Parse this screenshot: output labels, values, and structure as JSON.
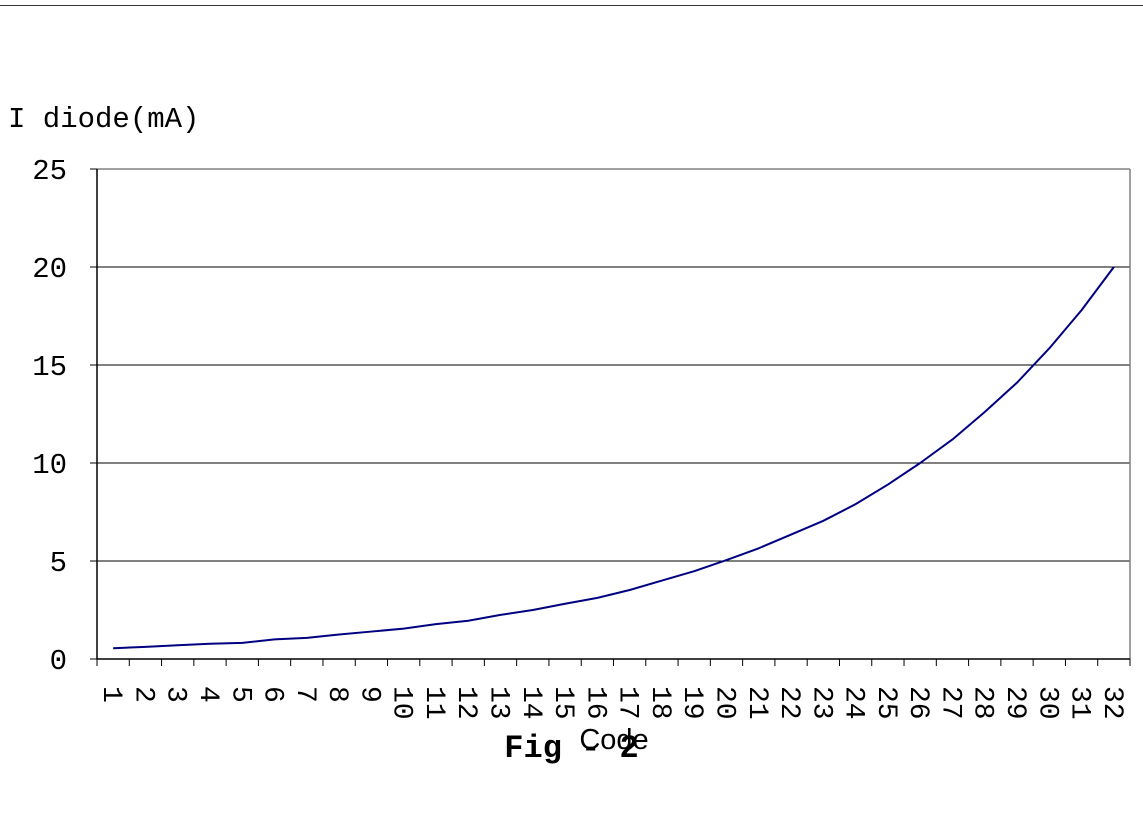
{
  "chart_data": {
    "type": "line",
    "title": "",
    "ylabel": "I diode(mA)",
    "xlabel": "Code",
    "ylim": [
      0,
      25
    ],
    "yticks": [
      0,
      5,
      10,
      15,
      20,
      25
    ],
    "grid": "horizontal",
    "legend": "none",
    "line_color": "#000080",
    "categories": [
      "1",
      "2",
      "3",
      "4",
      "5",
      "6",
      "7",
      "8",
      "9",
      "10",
      "11",
      "12",
      "13",
      "14",
      "15",
      "16",
      "17",
      "18",
      "19",
      "20",
      "21",
      "22",
      "23",
      "24",
      "25",
      "26",
      "27",
      "28",
      "29",
      "30",
      "31",
      "32"
    ],
    "series": [
      {
        "values": [
          0.55,
          0.62,
          0.7,
          0.78,
          0.82,
          1.0,
          1.08,
          1.25,
          1.4,
          1.55,
          1.78,
          1.95,
          2.25,
          2.5,
          2.82,
          3.12,
          3.52,
          4.0,
          4.48,
          5.05,
          5.65,
          6.35,
          7.05,
          7.9,
          8.9,
          10.0,
          11.2,
          12.6,
          14.1,
          15.85,
          17.8,
          20.0
        ]
      }
    ]
  },
  "caption": "Fig - 2"
}
